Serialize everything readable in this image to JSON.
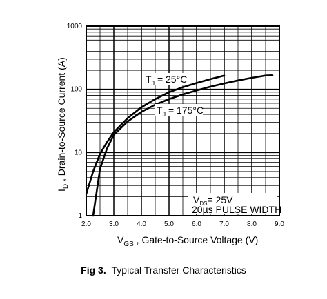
{
  "caption": {
    "number": "Fig 3.",
    "title": "Typical Transfer Characteristics"
  },
  "chart_data": {
    "type": "line",
    "xlabel": {
      "main": "V",
      "sub": "GS",
      "rest": " , Gate-to-Source Voltage (V)"
    },
    "ylabel": {
      "main": "I",
      "sub": "D",
      "rest": " , Drain-to-Source Current (A)"
    },
    "xlim": [
      2.0,
      9.0
    ],
    "ylim": [
      1,
      1000
    ],
    "yscale": "log",
    "grid": true,
    "x_ticks": [
      "2.0",
      "3.0",
      "4.0",
      "5.0",
      "6.0",
      "7.0",
      "8.0",
      "9.0"
    ],
    "y_ticks": [
      "1",
      "10",
      "100",
      "1000"
    ],
    "series": [
      {
        "name": {
          "main": "T",
          "sub": "J",
          "rest": " = 25°C"
        },
        "x": [
          2.0,
          2.25,
          2.5,
          2.75,
          3.0,
          3.5,
          4.0,
          4.5,
          5.0,
          5.5,
          6.0,
          6.5,
          7.0
        ],
        "y": [
          2.2,
          5.0,
          9.5,
          14.5,
          21,
          35,
          52,
          70,
          90,
          108,
          126,
          145,
          165
        ]
      },
      {
        "name": {
          "main": "T",
          "sub": "J",
          "rest": " = 175°C"
        },
        "x": [
          2.25,
          2.5,
          2.75,
          3.0,
          3.5,
          4.0,
          4.5,
          5.0,
          5.5,
          6.0,
          6.5,
          7.0,
          7.5,
          8.0,
          8.5,
          8.75
        ],
        "y": [
          1.0,
          5.5,
          11.5,
          19,
          31,
          44,
          57,
          70,
          83,
          96,
          110,
          124,
          138,
          152,
          165,
          167
        ]
      }
    ],
    "annotations": [
      {
        "main": "V",
        "sub": "DS",
        "rest": "= 25V"
      },
      {
        "text": "20µs PULSE WIDTH"
      }
    ]
  }
}
